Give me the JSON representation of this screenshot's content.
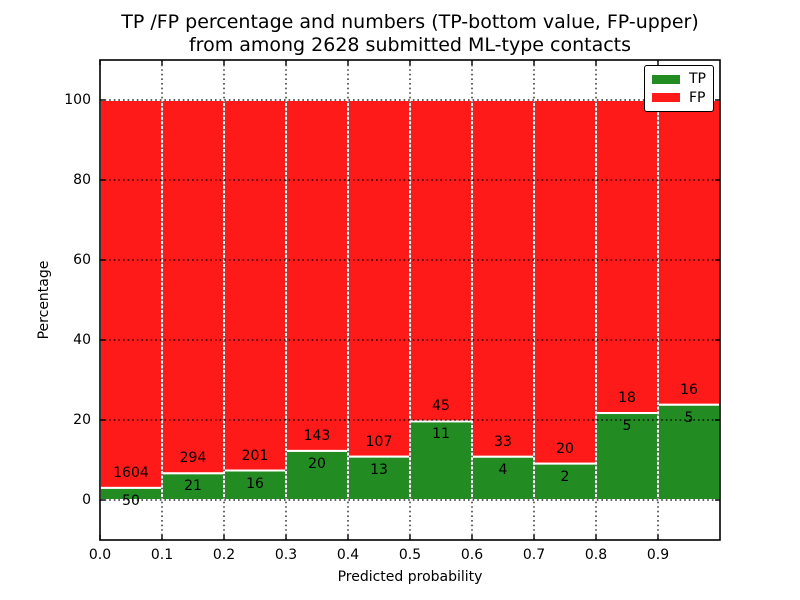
{
  "chart_data": {
    "type": "bar",
    "stacked": true,
    "normalized_to_percent": true,
    "title_lines": [
      "TP /FP percentage and numbers (TP-bottom value, FP-upper)",
      "from among 2628 submitted ML-type contacts"
    ],
    "title": "TP /FP percentage and numbers (TP-bottom value, FP-upper) from among 2628 submitted ML-type contacts",
    "xlabel": "Predicted probability",
    "ylabel": "Percentage",
    "total_contacts": 2628,
    "xlim": [
      0.0,
      1.0
    ],
    "ylim": [
      -10,
      110
    ],
    "bin_left_edges": [
      0.0,
      0.1,
      0.2,
      0.3,
      0.4,
      0.5,
      0.6,
      0.7,
      0.8,
      0.9
    ],
    "bin_width": 0.1,
    "xticks": [
      0.0,
      0.1,
      0.2,
      0.3,
      0.4,
      0.5,
      0.6,
      0.7,
      0.8,
      0.9
    ],
    "xticklabels": [
      "0.0",
      "0.1",
      "0.2",
      "0.3",
      "0.4",
      "0.5",
      "0.6",
      "0.7",
      "0.8",
      "0.9"
    ],
    "yticks": [
      0,
      20,
      40,
      60,
      80,
      100
    ],
    "yticklabels": [
      "0",
      "20",
      "40",
      "60",
      "80",
      "100"
    ],
    "grid": true,
    "grid_style": "dotted",
    "grid_color": "#000000",
    "bar_edge_color": "#ffffff",
    "series": [
      {
        "name": "TP",
        "color": "#228b22",
        "counts": [
          50,
          21,
          16,
          20,
          13,
          11,
          4,
          2,
          5,
          5
        ],
        "percent": [
          3.0,
          6.7,
          7.4,
          12.3,
          10.8,
          19.6,
          10.8,
          9.1,
          21.7,
          23.8
        ]
      },
      {
        "name": "FP",
        "color": "#ff1a1a",
        "counts": [
          1604,
          294,
          201,
          143,
          107,
          45,
          33,
          20,
          18,
          16
        ],
        "percent": [
          97.0,
          93.3,
          92.6,
          87.7,
          89.2,
          80.4,
          89.2,
          90.9,
          78.3,
          76.2
        ]
      }
    ],
    "legend": {
      "position": "upper right",
      "entries": [
        "TP",
        "FP"
      ]
    }
  }
}
